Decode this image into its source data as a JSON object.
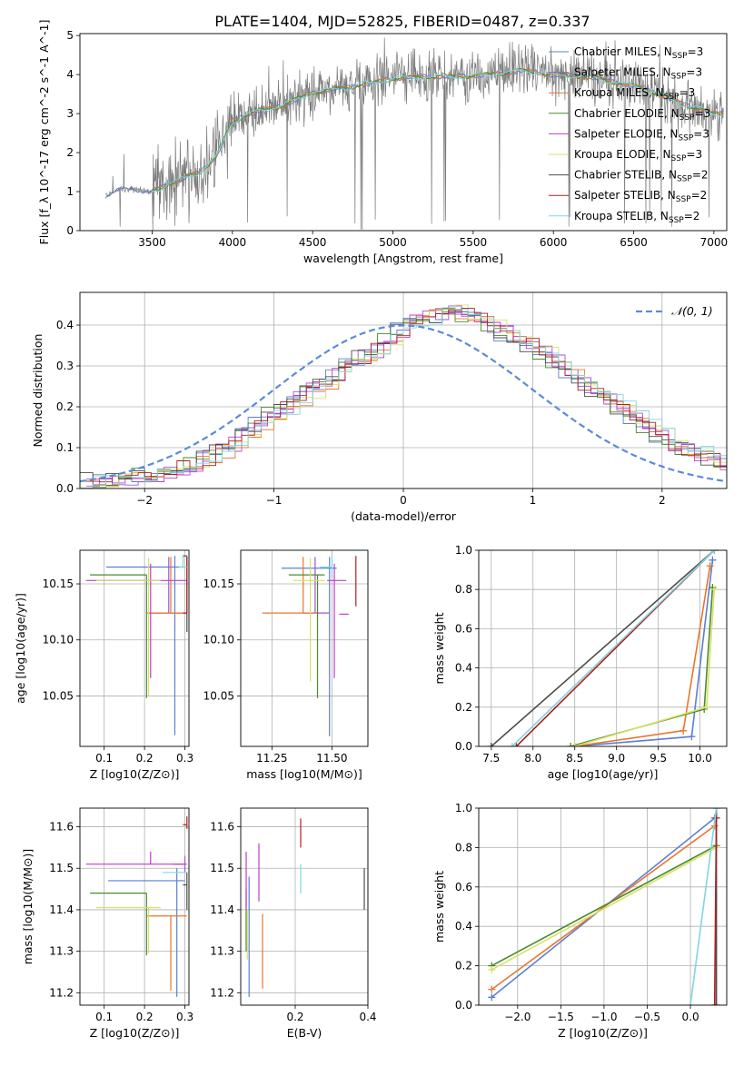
{
  "figure": {
    "title": "PLATE=1404, MJD=52825, FIBERID=0487, z=0.337"
  },
  "palette": {
    "series_colors": [
      "#5b7fd6",
      "#9b59d0",
      "#e8762d",
      "#4a8a2a",
      "#c23ad0",
      "#d8e06a",
      "#4d4d4d",
      "#b01e1e",
      "#7fd6e0"
    ],
    "observed": "#7a7a7a",
    "gauss": "#5b8bd8",
    "grid": "#b0b0b0"
  },
  "legend_spectrum": [
    {
      "model": "Chabrier MILES",
      "n": "3"
    },
    {
      "model": "Salpeter MILES",
      "n": "3"
    },
    {
      "model": "Kroupa MILES",
      "n": "3"
    },
    {
      "model": "Chabrier ELODIE",
      "n": "3"
    },
    {
      "model": "Salpeter ELODIE",
      "n": "3"
    },
    {
      "model": "Kroupa ELODIE",
      "n": "3"
    },
    {
      "model": "Chabrier STELIB",
      "n": "2"
    },
    {
      "model": "Salpeter STELIB",
      "n": "2"
    },
    {
      "model": "Kroupa STELIB",
      "n": "2"
    }
  ],
  "chart_data": [
    {
      "id": "spectrum",
      "type": "line",
      "xlabel": "wavelength [Angstrom, rest frame]",
      "ylabel": "Flux [f_λ 10^-17 erg cm^-2 s^-1 A^-1]",
      "xlim": [
        3050,
        7080
      ],
      "ylim": [
        0,
        5.05
      ],
      "xticks": [
        3500,
        4000,
        4500,
        5000,
        5500,
        6000,
        6500,
        7000
      ],
      "yticks": [
        0,
        1,
        2,
        3,
        4,
        5
      ],
      "continuum_x": [
        3210,
        3300,
        3400,
        3500,
        3600,
        3700,
        3800,
        3900,
        4000,
        4100,
        4200,
        4300,
        4400,
        4500,
        4600,
        4700,
        4800,
        4900,
        5000,
        5200,
        5400,
        5600,
        5800,
        6000,
        6200,
        6400,
        6600,
        6800,
        7000
      ],
      "continuum_y": [
        0.9,
        1.05,
        1.05,
        1.0,
        1.2,
        1.35,
        1.5,
        1.9,
        2.8,
        3.0,
        3.1,
        3.2,
        3.35,
        3.55,
        3.6,
        3.65,
        3.75,
        3.8,
        3.9,
        3.95,
        3.95,
        4.0,
        4.1,
        4.0,
        3.95,
        3.8,
        3.6,
        3.25,
        3.0
      ],
      "grid": false
    },
    {
      "id": "residuals",
      "type": "line",
      "xlabel": "(data-model)/error",
      "ylabel": "Normed distribution",
      "xlim": [
        -2.5,
        2.5
      ],
      "ylim": [
        0,
        0.48
      ],
      "xticks": [
        -2,
        -1,
        0,
        1,
        2
      ],
      "yticks": [
        0,
        0.1,
        0.2,
        0.3,
        0.4
      ],
      "gauss_label": "𝒩(0, 1)",
      "hist_bin_width": 0.1,
      "hist_base": [
        0.02,
        0.022,
        0.024,
        0.027,
        0.03,
        0.034,
        0.04,
        0.05,
        0.06,
        0.075,
        0.09,
        0.11,
        0.13,
        0.155,
        0.18,
        0.2,
        0.22,
        0.24,
        0.26,
        0.28,
        0.3,
        0.32,
        0.34,
        0.36,
        0.39,
        0.41,
        0.42,
        0.425,
        0.43,
        0.425,
        0.42,
        0.4,
        0.38,
        0.36,
        0.35,
        0.33,
        0.31,
        0.28,
        0.26,
        0.24,
        0.22,
        0.2,
        0.17,
        0.15,
        0.13,
        0.11,
        0.095,
        0.085,
        0.075,
        0.065
      ],
      "grid": true
    },
    {
      "id": "age_vs_Z",
      "type": "scatter",
      "xlabel": "Z [log10(Z/Z⊙)]",
      "ylabel": "age [log10(age/yr)]",
      "xlim": [
        0.04,
        0.31
      ],
      "ylim": [
        10.005,
        10.18
      ],
      "xticks": [
        0.1,
        0.2,
        0.3
      ],
      "yticks": [
        10.05,
        10.1,
        10.15
      ],
      "points": [
        {
          "x": 0.275,
          "y": 10.165,
          "xerr": [
            0.17,
            0.02
          ],
          "yerr": [
            0.15,
            0.01
          ],
          "c": 0
        },
        {
          "x": 0.26,
          "y": 10.124,
          "xerr": [
            0.05,
            0.04
          ],
          "yerr": [
            0.0,
            0.05
          ],
          "c": 1
        },
        {
          "x": 0.265,
          "y": 10.124,
          "xerr": [
            0.06,
            0.04
          ],
          "yerr": [
            0.0,
            0.05
          ],
          "c": 2
        },
        {
          "x": 0.205,
          "y": 10.158,
          "xerr": [
            0.14,
            0.0
          ],
          "yerr": [
            0.11,
            0.0
          ],
          "c": 3
        },
        {
          "x": 0.215,
          "y": 10.153,
          "xerr": [
            0.16,
            0.09
          ],
          "yerr": [
            0.087,
            0.015
          ],
          "c": 4
        },
        {
          "x": 0.21,
          "y": 10.153,
          "xerr": [
            0.13,
            0.03
          ],
          "yerr": [
            0.103,
            0.02
          ],
          "c": 5
        },
        {
          "x": 0.305,
          "y": 10.175,
          "xerr": [
            0.01,
            0.0
          ],
          "yerr": [
            0.068,
            0.0
          ],
          "c": 6
        },
        {
          "x": 0.305,
          "y": 10.124,
          "xerr": [
            0.01,
            0.0
          ],
          "yerr": [
            0.0,
            0.05
          ],
          "c": 7
        },
        {
          "x": 0.295,
          "y": 10.165,
          "xerr": [
            0.01,
            0.01
          ],
          "yerr": [
            0.0,
            0.01
          ],
          "c": 8
        }
      ],
      "grid": true
    },
    {
      "id": "age_vs_mass",
      "type": "scatter",
      "xlabel": "mass [log10(M/M⊙)]",
      "ylabel": "",
      "xlim": [
        11.12,
        11.65
      ],
      "ylim": [
        10.005,
        10.18
      ],
      "xticks": [
        11.25,
        11.5
      ],
      "yticks": [
        10.05,
        10.1,
        10.15
      ],
      "points": [
        {
          "x": 11.49,
          "y": 10.164,
          "xerr": [
            0.2,
            0.03
          ],
          "yerr": [
            0.15,
            0.01
          ],
          "c": 0
        },
        {
          "x": 11.43,
          "y": 10.124,
          "xerr": [
            0.05,
            0.06
          ],
          "yerr": [
            0.0,
            0.05
          ],
          "c": 1
        },
        {
          "x": 11.38,
          "y": 10.124,
          "xerr": [
            0.17,
            0.05
          ],
          "yerr": [
            0.0,
            0.05
          ],
          "c": 2
        },
        {
          "x": 11.44,
          "y": 10.158,
          "xerr": [
            0.12,
            0.03
          ],
          "yerr": [
            0.11,
            0.0
          ],
          "c": 3
        },
        {
          "x": 11.51,
          "y": 10.153,
          "xerr": [
            0.03,
            0.05
          ],
          "yerr": [
            0.087,
            0.015
          ],
          "c": 4
        },
        {
          "x": 11.41,
          "y": 10.153,
          "xerr": [
            0.07,
            0.06
          ],
          "yerr": [
            0.09,
            0.02
          ],
          "c": 5
        },
        {
          "x": 11.6,
          "y": 10.175,
          "xerr": [
            0.0,
            0.0
          ],
          "yerr": [
            0.045,
            0.0
          ],
          "c": 7
        },
        {
          "x": 11.53,
          "y": 10.123,
          "xerr": [
            0.0,
            0.04
          ],
          "yerr": [
            0.0,
            0.0
          ],
          "c": 4
        },
        {
          "x": 11.5,
          "y": 10.165,
          "xerr": [
            0.05,
            0.0
          ],
          "yerr": [
            0.01,
            0.01
          ],
          "c": 8
        }
      ],
      "grid": true
    },
    {
      "id": "massweight_vs_age",
      "type": "line",
      "xlabel": "age [log10(age/yr)]",
      "ylabel": "mass weight",
      "xlim": [
        7.35,
        10.32
      ],
      "ylim": [
        0,
        1.0
      ],
      "xticks": [
        7.5,
        8.0,
        8.5,
        9.0,
        9.5,
        10.0
      ],
      "yticks": [
        0.0,
        0.2,
        0.4,
        0.6,
        0.8,
        1.0
      ],
      "series": [
        {
          "c": 0,
          "x": [
            8.5,
            9.9,
            10.15
          ],
          "y": [
            0.0,
            0.05,
            0.95
          ]
        },
        {
          "c": 2,
          "x": [
            8.5,
            9.8,
            10.12
          ],
          "y": [
            0.0,
            0.08,
            0.92
          ]
        },
        {
          "c": 3,
          "x": [
            8.45,
            10.05,
            10.15
          ],
          "y": [
            0.0,
            0.19,
            0.81
          ]
        },
        {
          "c": 5,
          "x": [
            8.5,
            10.08,
            10.17
          ],
          "y": [
            0.0,
            0.2,
            0.8
          ]
        },
        {
          "c": 6,
          "x": [
            7.5,
            10.17
          ],
          "y": [
            0.0,
            1.0
          ]
        },
        {
          "c": 7,
          "x": [
            7.8,
            10.17
          ],
          "y": [
            0.0,
            1.0
          ]
        },
        {
          "c": 8,
          "x": [
            7.75,
            10.17
          ],
          "y": [
            0.0,
            1.0
          ]
        }
      ],
      "grid": true
    },
    {
      "id": "mass_vs_Z",
      "type": "scatter",
      "xlabel": "Z [log10(Z/Z⊙)]",
      "ylabel": "mass [log10(M/M⊙)]",
      "xlim": [
        0.04,
        0.31
      ],
      "ylim": [
        11.17,
        11.645
      ],
      "xticks": [
        0.1,
        0.2,
        0.3
      ],
      "yticks": [
        11.2,
        11.3,
        11.4,
        11.5,
        11.6
      ],
      "points": [
        {
          "x": 0.28,
          "y": 11.47,
          "xerr": [
            0.17,
            0.02
          ],
          "yerr": [
            0.28,
            0.03
          ],
          "c": 0
        },
        {
          "x": 0.3,
          "y": 11.51,
          "xerr": [
            0.03,
            0.0
          ],
          "yerr": [
            0.02,
            0.02
          ],
          "c": 1
        },
        {
          "x": 0.265,
          "y": 11.385,
          "xerr": [
            0.06,
            0.04
          ],
          "yerr": [
            0.18,
            0.0
          ],
          "c": 2
        },
        {
          "x": 0.205,
          "y": 11.44,
          "xerr": [
            0.14,
            0.0
          ],
          "yerr": [
            0.15,
            0.0
          ],
          "c": 3
        },
        {
          "x": 0.215,
          "y": 11.51,
          "xerr": [
            0.16,
            0.09
          ],
          "yerr": [
            0.0,
            0.03
          ],
          "c": 4
        },
        {
          "x": 0.21,
          "y": 11.405,
          "xerr": [
            0.13,
            0.03
          ],
          "yerr": [
            0.11,
            0.0
          ],
          "c": 5
        },
        {
          "x": 0.305,
          "y": 11.46,
          "xerr": [
            0.01,
            0.0
          ],
          "yerr": [
            0.06,
            0.03
          ],
          "c": 6
        },
        {
          "x": 0.305,
          "y": 11.605,
          "xerr": [
            0.01,
            0.0
          ],
          "yerr": [
            0.01,
            0.02
          ],
          "c": 7
        },
        {
          "x": 0.295,
          "y": 11.49,
          "xerr": [
            0.05,
            0.01
          ],
          "yerr": [
            0.0,
            0.0
          ],
          "c": 8
        }
      ],
      "grid": true
    },
    {
      "id": "mass_vs_ebv",
      "type": "scatter",
      "xlabel": "E(B-V)",
      "ylabel": "",
      "xlim": [
        0.05,
        0.4
      ],
      "ylim": [
        11.17,
        11.645
      ],
      "xticks": [
        0.2,
        0.4
      ],
      "yticks": [
        11.2,
        11.3,
        11.4,
        11.5,
        11.6
      ],
      "points": [
        {
          "x": 0.073,
          "y": 11.19,
          "xerr": [
            0,
            0
          ],
          "yerr": [
            0.0,
            0.29
          ],
          "c": 0
        },
        {
          "x": 0.07,
          "y": 11.47,
          "xerr": [
            0,
            0
          ],
          "yerr": [
            0.0,
            0.0
          ],
          "c": 1
        },
        {
          "x": 0.11,
          "y": 11.21,
          "xerr": [
            0,
            0
          ],
          "yerr": [
            0.0,
            0.18
          ],
          "c": 2
        },
        {
          "x": 0.065,
          "y": 11.3,
          "xerr": [
            0,
            0
          ],
          "yerr": [
            0.0,
            0.15
          ],
          "c": 3
        },
        {
          "x": 0.065,
          "y": 11.4,
          "xerr": [
            0,
            0
          ],
          "yerr": [
            0.0,
            0.14
          ],
          "c": 4
        },
        {
          "x": 0.068,
          "y": 11.28,
          "xerr": [
            0,
            0
          ],
          "yerr": [
            0.0,
            0.12
          ],
          "c": 5
        },
        {
          "x": 0.39,
          "y": 11.4,
          "xerr": [
            0,
            0
          ],
          "yerr": [
            0.0,
            0.1
          ],
          "c": 6
        },
        {
          "x": 0.215,
          "y": 11.55,
          "xerr": [
            0,
            0
          ],
          "yerr": [
            0.0,
            0.07
          ],
          "c": 7
        },
        {
          "x": 0.215,
          "y": 11.44,
          "xerr": [
            0,
            0
          ],
          "yerr": [
            0.0,
            0.07
          ],
          "c": 8
        },
        {
          "x": 0.1,
          "y": 11.42,
          "xerr": [
            0,
            0
          ],
          "yerr": [
            0.0,
            0.14
          ],
          "c": 4
        }
      ],
      "grid": true
    },
    {
      "id": "massweight_vs_Z",
      "type": "line",
      "xlabel": "Z [log10(Z/Z⊙)]",
      "ylabel": "mass weight",
      "xlim": [
        -2.45,
        0.42
      ],
      "ylim": [
        0,
        1.0
      ],
      "xticks": [
        -2.0,
        -1.5,
        -1.0,
        -0.5,
        0.0
      ],
      "yticks": [
        0.0,
        0.2,
        0.4,
        0.6,
        0.8,
        1.0
      ],
      "series": [
        {
          "c": 0,
          "x": [
            -2.3,
            0.28
          ],
          "y": [
            0.04,
            0.95
          ]
        },
        {
          "c": 2,
          "x": [
            -2.3,
            0.28
          ],
          "y": [
            0.08,
            0.91
          ]
        },
        {
          "c": 3,
          "x": [
            -2.3,
            0.3
          ],
          "y": [
            0.2,
            0.81
          ]
        },
        {
          "c": 5,
          "x": [
            -2.3,
            0.3
          ],
          "y": [
            0.18,
            0.8
          ]
        },
        {
          "c": 6,
          "x": [
            0.3,
            0.3
          ],
          "y": [
            0.0,
            1.0
          ]
        },
        {
          "c": 7,
          "x": [
            0.28,
            0.3
          ],
          "y": [
            0.0,
            0.95
          ]
        },
        {
          "c": 8,
          "x": [
            0.0,
            0.3
          ],
          "y": [
            0.0,
            1.0
          ]
        }
      ],
      "grid": true
    }
  ]
}
